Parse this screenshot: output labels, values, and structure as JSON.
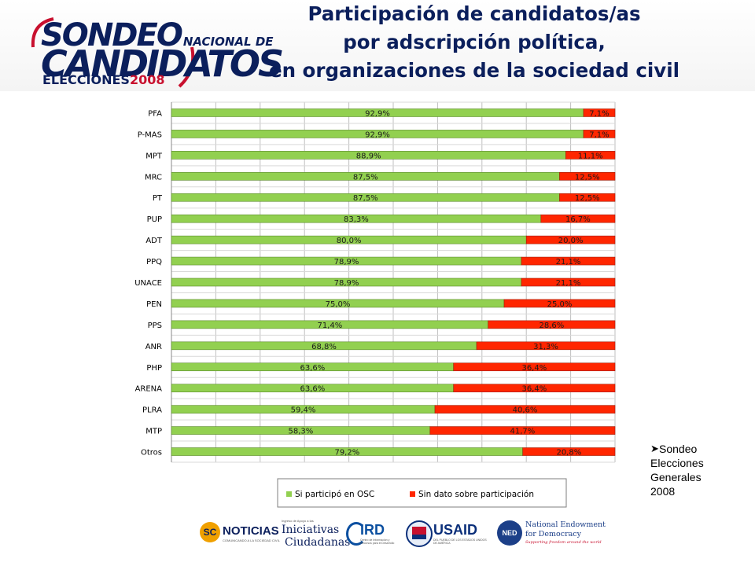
{
  "title": {
    "line1": "Participación de candidatos/as",
    "line2": "por adscripción política,",
    "line3": "en organizaciones de la sociedad civil"
  },
  "logo": {
    "word1": "SONDEO",
    "word1b": "NACIONAL DE",
    "word2": "CANDIDATOS",
    "word3a": "ELECCIONES",
    "word3b": "2008"
  },
  "note": {
    "marker": "➤",
    "line1": "Sondeo",
    "line2": "Elecciones",
    "line3": "Generales",
    "line4": "2008"
  },
  "footer": {
    "sc_label": "NOTICIAS",
    "sc_sub": "COMUNICANDO A LA SOCIEDAD CIVIL",
    "ini_small": "Ingreso de Apoyo a las",
    "ini_l1": "Iniciativas",
    "ini_l2": "Ciudadanas",
    "ird_label": "IRD",
    "ird_sub": "Centro de Información y Recursos para el Desarrollo",
    "usaid_label": "USAID",
    "usaid_sub": "DEL PUEBLO DE LOS ESTADOS UNIDOS DE AMÉRICA",
    "ned_mark": "NED",
    "ned_l1": "National Endowment",
    "ned_l2": "for Democracy",
    "ned_tag": "Supporting freedom around the world"
  },
  "colors": {
    "series1": "#92d050",
    "series2": "#ff2600",
    "title": "#0b1f5c"
  },
  "chart_data": {
    "type": "bar",
    "orientation": "horizontal",
    "stacked": true,
    "categories": [
      "PFA",
      "P-MAS",
      "MPT",
      "MRC",
      "PT",
      "PUP",
      "ADT",
      "PPQ",
      "UNACE",
      "PEN",
      "PPS",
      "ANR",
      "PHP",
      "ARENA",
      "PLRA",
      "MTP",
      "Otros"
    ],
    "series": [
      {
        "name": "Si participó en OSC",
        "values": [
          92.9,
          92.9,
          88.9,
          87.5,
          87.5,
          83.3,
          80.0,
          78.9,
          78.9,
          75.0,
          71.4,
          68.8,
          63.6,
          63.6,
          59.4,
          58.3,
          79.2
        ],
        "labels": [
          "92,9%",
          "92,9%",
          "88,9%",
          "87,5%",
          "87,5%",
          "83,3%",
          "80,0%",
          "78,9%",
          "78,9%",
          "75,0%",
          "71,4%",
          "68,8%",
          "63,6%",
          "63,6%",
          "59,4%",
          "58,3%",
          "79,2%"
        ]
      },
      {
        "name": "Sin dato sobre participación",
        "values": [
          7.1,
          7.1,
          11.1,
          12.5,
          12.5,
          16.7,
          20.0,
          21.1,
          21.1,
          25.0,
          28.6,
          31.3,
          36.4,
          36.4,
          40.6,
          41.7,
          20.8
        ],
        "labels": [
          "7,1%",
          "7,1%",
          "11,1%",
          "12,5%",
          "12,5%",
          "16,7%",
          "20,0%",
          "21,1%",
          "21,1%",
          "25,0%",
          "28,6%",
          "31,3%",
          "36,4%",
          "36,4%",
          "40,6%",
          "41,7%",
          "20,8%"
        ]
      }
    ],
    "xlim": [
      0,
      100
    ],
    "grid": true,
    "legend_position": "bottom"
  }
}
